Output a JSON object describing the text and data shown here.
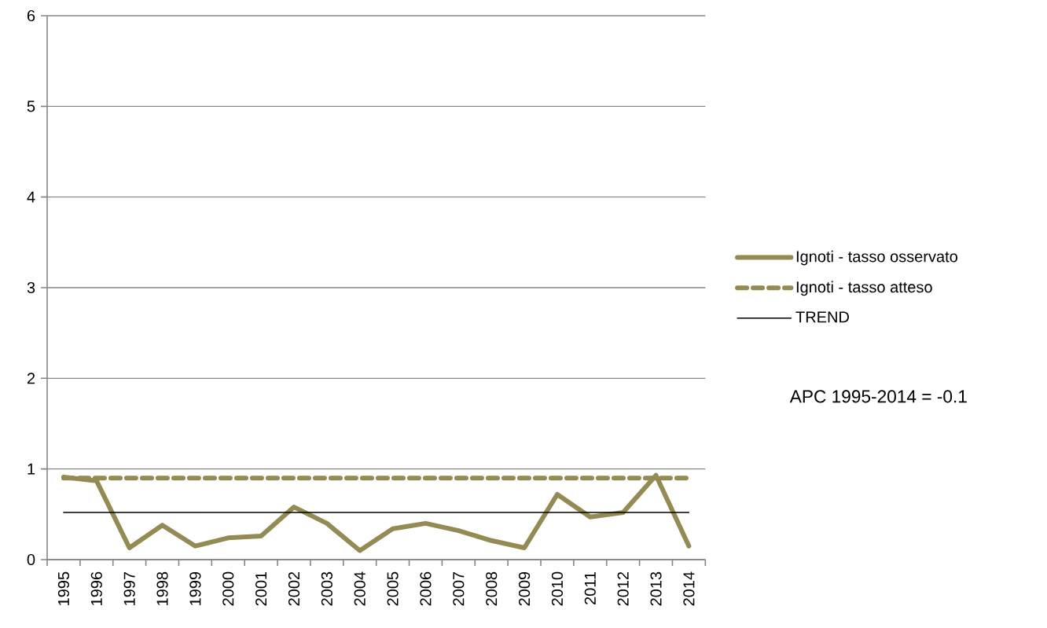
{
  "chart_data": {
    "type": "line",
    "categories": [
      "1995",
      "1996",
      "1997",
      "1998",
      "1999",
      "2000",
      "2001",
      "2002",
      "2003",
      "2004",
      "2005",
      "2006",
      "2007",
      "2008",
      "2009",
      "2010",
      "2011",
      "2012",
      "2013",
      "2014"
    ],
    "series": [
      {
        "name": "Ignoti - tasso osservato",
        "color": "#948a54",
        "line_style": "solid",
        "values": [
          0.91,
          0.87,
          0.13,
          0.38,
          0.15,
          0.24,
          0.26,
          0.58,
          0.4,
          0.1,
          0.34,
          0.4,
          0.32,
          0.21,
          0.13,
          0.72,
          0.47,
          0.52,
          0.93,
          0.15
        ]
      },
      {
        "name": "Ignoti - tasso atteso",
        "color": "#948a54",
        "line_style": "dashed",
        "values": [
          0.9,
          0.9,
          0.9,
          0.9,
          0.9,
          0.9,
          0.9,
          0.9,
          0.9,
          0.9,
          0.9,
          0.9,
          0.9,
          0.9,
          0.9,
          0.9,
          0.9,
          0.9,
          0.9,
          0.9
        ]
      },
      {
        "name": "TREND",
        "color": "#000000",
        "line_style": "solid",
        "values": [
          0.52,
          0.52,
          0.52,
          0.52,
          0.52,
          0.52,
          0.52,
          0.52,
          0.52,
          0.52,
          0.52,
          0.52,
          0.52,
          0.52,
          0.52,
          0.52,
          0.52,
          0.52,
          0.52,
          0.52
        ]
      }
    ],
    "ylim": [
      0,
      6
    ],
    "yticks": [
      0,
      1,
      2,
      3,
      4,
      5,
      6
    ],
    "grid": "y",
    "legend": "right",
    "annotations": [
      "APC 1995-2014 = -0.1"
    ]
  }
}
